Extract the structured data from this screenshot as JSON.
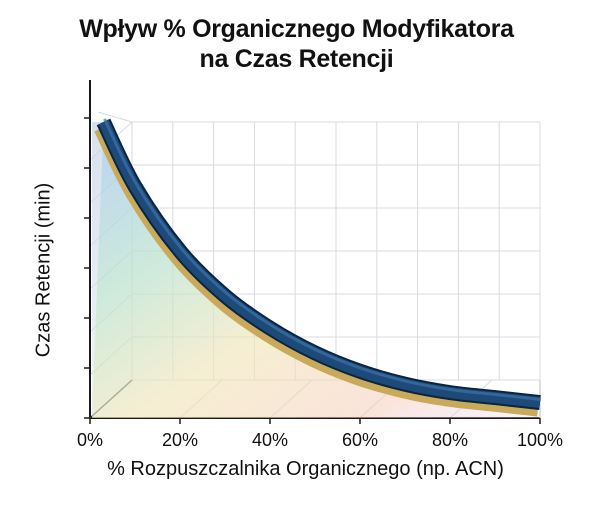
{
  "chart_data": {
    "type": "line",
    "title_line1": "Wpływ % Organicznego Modyfikatora",
    "title_line2": "na Czas Retencji",
    "xlabel": "% Rozpuszczalnika Organicznego (np. ACN)",
    "ylabel": "Czas Retencji (min)",
    "xticks": [
      "0%",
      "20%",
      "40%",
      "60%",
      "80%",
      "100%"
    ],
    "xlim": [
      0,
      100
    ],
    "ylim": [
      0,
      6
    ],
    "grid": true,
    "series": [
      {
        "color": "#1d4a78",
        "x": [
          3,
          10,
          20,
          30,
          40,
          50,
          60,
          70,
          80,
          90,
          100
        ],
        "y": [
          5.8,
          4.5,
          3.2,
          2.3,
          1.65,
          1.15,
          0.78,
          0.52,
          0.35,
          0.25,
          0.15
        ]
      }
    ]
  }
}
